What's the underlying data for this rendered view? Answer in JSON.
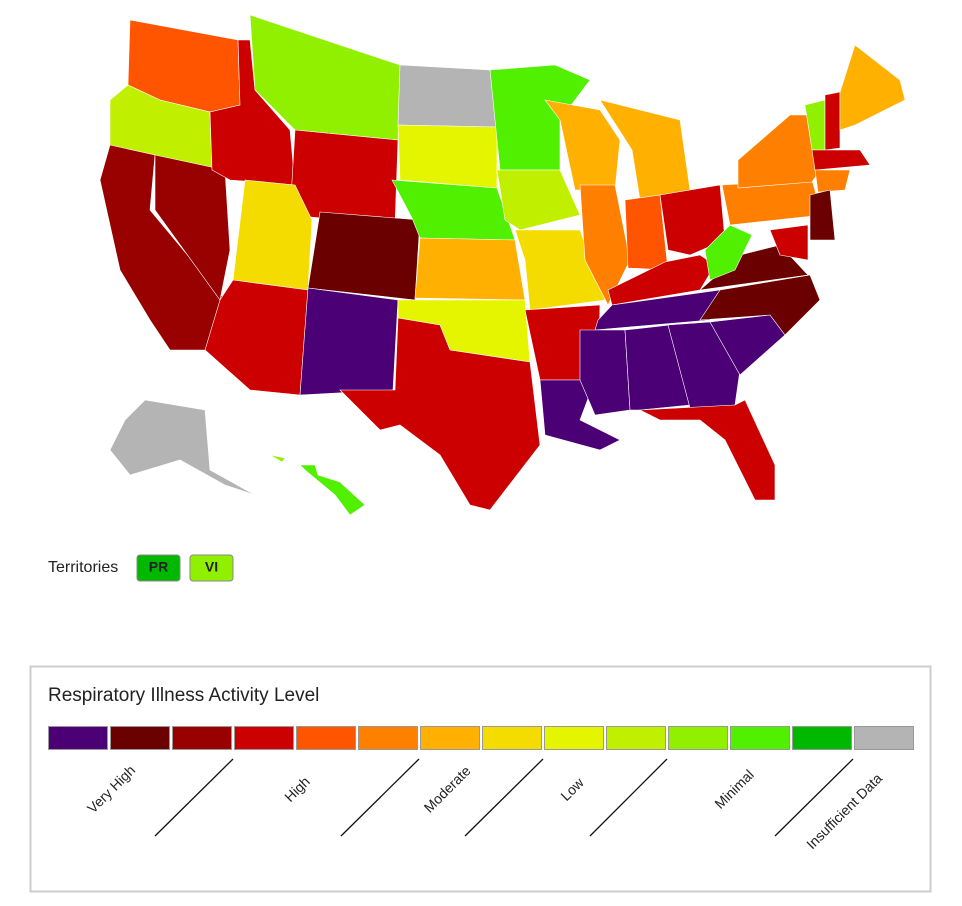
{
  "map": {
    "regions": [
      4,
      9,
      2,
      2,
      3,
      10,
      3,
      7,
      1,
      3,
      0,
      13,
      8,
      11,
      6,
      8,
      3,
      11,
      9,
      7,
      3,
      0,
      6,
      5,
      6,
      4,
      3,
      3,
      0,
      0,
      0,
      0,
      3,
      0,
      1,
      1,
      11,
      5,
      5,
      10,
      3,
      6,
      3,
      5,
      1,
      3,
      13,
      11,
      10
    ]
  },
  "territories": {
    "label": "Territories",
    "items": [
      {
        "label": "PR",
        "level": 12
      },
      {
        "label": "VI",
        "level": 10
      }
    ]
  },
  "legend": {
    "title": "Respiratory Illness Activity Level",
    "colors": [
      "#4b0076",
      "#6b0000",
      "#990000",
      "#cc0000",
      "#ff5500",
      "#ff8000",
      "#ffb000",
      "#f5dc00",
      "#e5f500",
      "#c0f000",
      "#90f000",
      "#50f000",
      "#00b800",
      "#b4b4b4"
    ],
    "labels": [
      "Very High",
      "High",
      "Moderate",
      "Low",
      "Minimal",
      "Insufficient Data"
    ]
  }
}
